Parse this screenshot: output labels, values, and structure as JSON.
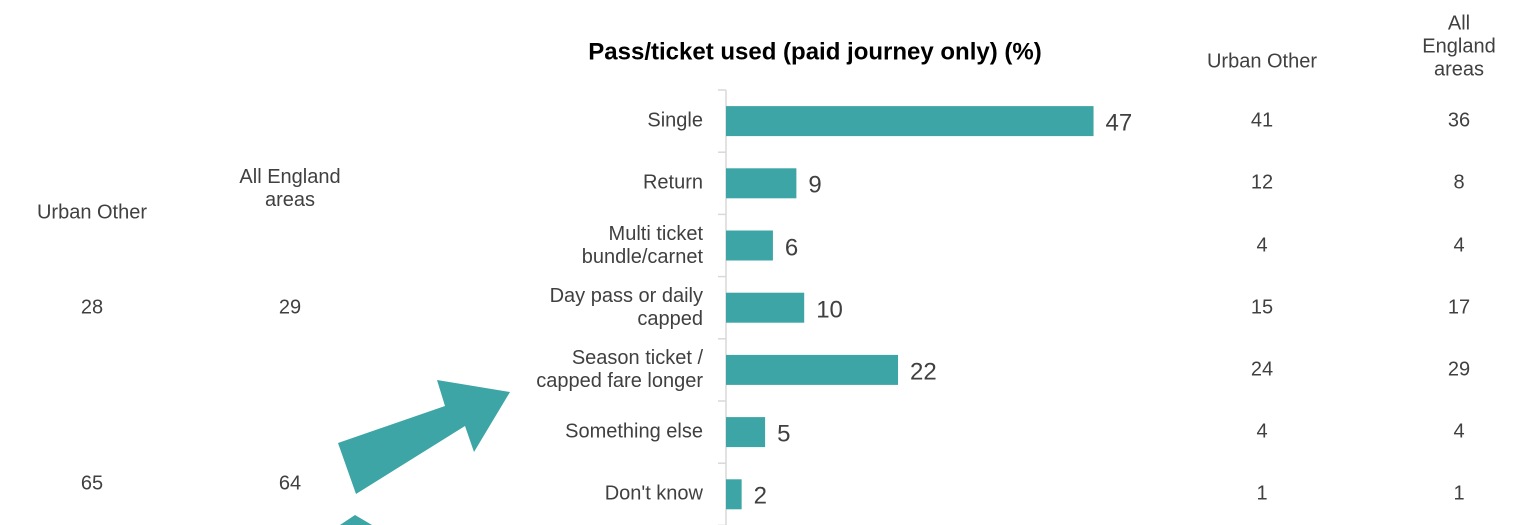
{
  "chart_data": {
    "type": "bar",
    "orientation": "horizontal",
    "title": "Pass/ticket used (paid journey only) (%)",
    "categories": [
      "Single",
      "Return",
      "Multi ticket\nbundle/carnet",
      "Day pass or daily\ncapped",
      "Season ticket /\ncapped fare longer",
      "Something else",
      "Don't know"
    ],
    "values": [
      47,
      9,
      6,
      10,
      22,
      5,
      2
    ],
    "color": "#3DA5A5",
    "xlim": [
      0,
      50
    ]
  },
  "comparison_right": {
    "columns": [
      {
        "header": "Urban Other",
        "values": [
          41,
          12,
          4,
          15,
          24,
          4,
          1
        ]
      },
      {
        "header": "All England\nareas",
        "values": [
          36,
          8,
          4,
          17,
          29,
          4,
          1
        ]
      }
    ]
  },
  "comparison_left": {
    "columns": [
      {
        "header": "Urban Other",
        "values": [
          28,
          65
        ]
      },
      {
        "header": "All England\nareas",
        "values": [
          29,
          64
        ]
      }
    ]
  }
}
